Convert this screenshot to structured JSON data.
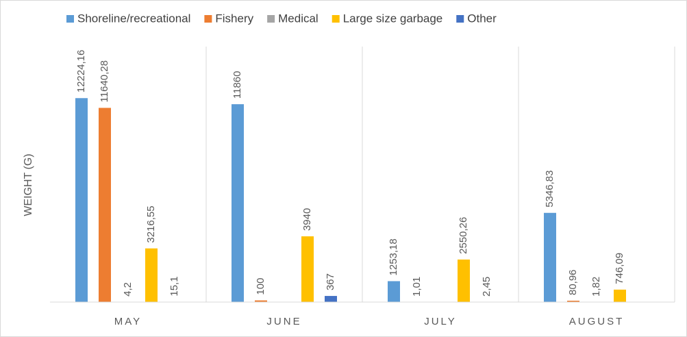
{
  "chart_data": {
    "type": "bar",
    "y_label": "WEIGHT (G)",
    "categories": [
      "MAY",
      "JUNE",
      "JULY",
      "AUGUST"
    ],
    "ylim": [
      0,
      14000
    ],
    "legend": "top",
    "series": [
      {
        "name": "Shoreline/recreational",
        "color": "#5b9bd5",
        "values": [
          12224.16,
          11860,
          1253.18,
          5346.83
        ],
        "value_labels": [
          "12224,16",
          "11860",
          "1253,18",
          "5346,83"
        ]
      },
      {
        "name": "Fishery",
        "color": "#ed7d31",
        "values": [
          11640.28,
          100,
          1.01,
          80.96
        ],
        "value_labels": [
          "11640,28",
          "100",
          "1,01",
          "80,96"
        ]
      },
      {
        "name": "Medical",
        "color": "#a5a5a5",
        "values": [
          4.2,
          null,
          null,
          1.82
        ],
        "value_labels": [
          "4,2",
          null,
          null,
          "1,82"
        ]
      },
      {
        "name": "Large size garbage",
        "color": "#ffc000",
        "values": [
          3216.55,
          3940,
          2550.26,
          746.09
        ],
        "value_labels": [
          "3216,55",
          "3940",
          "2550,26",
          "746,09"
        ]
      },
      {
        "name": "Other",
        "color": "#4472c4",
        "values": [
          15.1,
          367,
          2.45,
          null
        ],
        "value_labels": [
          "15,1",
          "367",
          "2,45",
          null
        ]
      }
    ]
  }
}
